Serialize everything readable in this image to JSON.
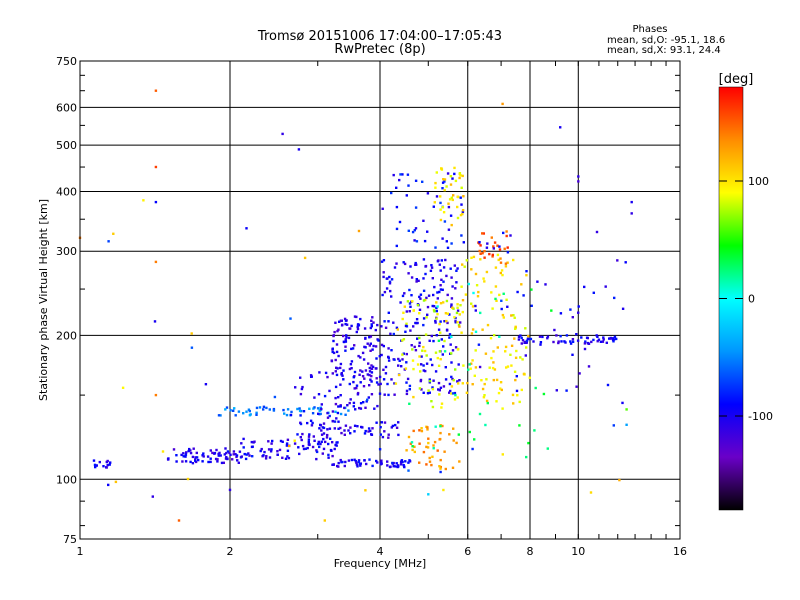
{
  "header": {
    "title_line1": "Tromsø 20151006 17:04:00–17:05:43",
    "title_line2": "RwPretec (8p)"
  },
  "phases_box": {
    "heading": "Phases",
    "line_o": "mean, sd,O: -95.1, 18.6",
    "line_x": "mean, sd,X:  93.1, 24.4"
  },
  "chart_data": {
    "type": "scatter",
    "xlabel": "Frequency [MHz]",
    "ylabel": "Stationary phase Virtual Height [km]",
    "x_scale": "log",
    "y_scale": "log",
    "xlim": [
      1,
      16
    ],
    "ylim": [
      75,
      750
    ],
    "x_ticks": [
      1,
      2,
      4,
      6,
      8,
      10,
      16
    ],
    "x_tick_labels": [
      "1",
      "2",
      "4",
      "6",
      "8",
      "10",
      "16"
    ],
    "y_ticks": [
      75,
      100,
      200,
      300,
      400,
      500,
      600,
      750
    ],
    "y_tick_labels": [
      "75",
      "100",
      "200",
      "300",
      "400",
      "500",
      "600",
      "750"
    ],
    "grid": true,
    "colorbar": {
      "label": "[deg]",
      "range": [
        -180,
        180
      ],
      "ticks": [
        100,
        0,
        -100
      ],
      "tick_labels": [
        "100",
        "0",
        "-100"
      ],
      "colors": [
        "#000000",
        "#6a00c8",
        "#0000ff",
        "#0096ff",
        "#00ffff",
        "#00ff00",
        "#ffff00",
        "#ff8c00",
        "#ff0000"
      ]
    },
    "point_clusters": [
      {
        "f": [
          1.05,
          1.15
        ],
        "h": [
          105,
          110
        ],
        "phase": -100,
        "n": 14
      },
      {
        "f": [
          1.5,
          2.1
        ],
        "h": [
          108,
          116
        ],
        "phase": -105,
        "n": 70
      },
      {
        "f": [
          2.1,
          3.3
        ],
        "h": [
          110,
          122
        ],
        "phase": -100,
        "n": 80
      },
      {
        "f": [
          3.2,
          4.6
        ],
        "h": [
          106,
          110
        ],
        "phase": -100,
        "n": 60
      },
      {
        "f": [
          1.9,
          3.6
        ],
        "h": [
          136,
          142
        ],
        "phase": -50,
        "n": 50
      },
      {
        "f": [
          3.0,
          4.4
        ],
        "h": [
          122,
          132
        ],
        "phase": -105,
        "n": 50
      },
      {
        "f": [
          3.2,
          4.0
        ],
        "h": [
          140,
          220
        ],
        "phase": -105,
        "n": 160
      },
      {
        "f": [
          2.7,
          3.3
        ],
        "h": [
          118,
          170
        ],
        "phase": -100,
        "n": 50
      },
      {
        "f": [
          4.0,
          5.8
        ],
        "h": [
          150,
          290
        ],
        "phase": -100,
        "n": 220
      },
      {
        "f": [
          4.2,
          5.9
        ],
        "h": [
          300,
          440
        ],
        "phase": -90,
        "n": 50
      },
      {
        "f": [
          5.1,
          5.9
        ],
        "h": [
          340,
          450
        ],
        "phase": 100,
        "n": 40
      },
      {
        "f": [
          4.3,
          5.8
        ],
        "h": [
          140,
          240
        ],
        "phase": 90,
        "n": 80
      },
      {
        "f": [
          4.5,
          5.8
        ],
        "h": [
          105,
          130
        ],
        "phase": 130,
        "n": 45
      },
      {
        "f": [
          5.8,
          8.0
        ],
        "h": [
          140,
          300
        ],
        "phase": 100,
        "n": 110
      },
      {
        "f": [
          6.3,
          7.3
        ],
        "h": [
          280,
          330
        ],
        "phase": 150,
        "n": 25
      },
      {
        "f": [
          7.3,
          12
        ],
        "h": [
          192,
          200
        ],
        "phase": -100,
        "n": 60
      },
      {
        "f": [
          6.0,
          12.5
        ],
        "h": [
          150,
          330
        ],
        "phase": -100,
        "n": 45
      },
      {
        "f": [
          4.5,
          9.0
        ],
        "h": [
          110,
          260
        ],
        "phase": 20,
        "n": 35
      },
      {
        "f": [
          1.0,
          14
        ],
        "h": [
          80,
          400
        ],
        "phase": -80,
        "n": 25
      },
      {
        "f": [
          1.0,
          14
        ],
        "h": [
          80,
          400
        ],
        "phase": 110,
        "n": 20
      }
    ],
    "outlier_points": [
      {
        "f": 1.42,
        "h": 650,
        "phase": 150
      },
      {
        "f": 1.42,
        "h": 450,
        "phase": 160
      },
      {
        "f": 1.42,
        "h": 285,
        "phase": 140
      },
      {
        "f": 1.42,
        "h": 380,
        "phase": -90
      },
      {
        "f": 2.55,
        "h": 528,
        "phase": -110
      },
      {
        "f": 2.75,
        "h": 490,
        "phase": -100
      },
      {
        "f": 7.05,
        "h": 610,
        "phase": 130
      },
      {
        "f": 9.2,
        "h": 545,
        "phase": -100
      },
      {
        "f": 4.05,
        "h": 368,
        "phase": -110
      },
      {
        "f": 10.0,
        "h": 430,
        "phase": -110
      },
      {
        "f": 10.0,
        "h": 420,
        "phase": -120
      },
      {
        "f": 12.8,
        "h": 380,
        "phase": -100
      },
      {
        "f": 12.8,
        "h": 360,
        "phase": -110
      },
      {
        "f": 1.0,
        "h": 320,
        "phase": 140
      },
      {
        "f": 1.42,
        "h": 150,
        "phase": 140
      },
      {
        "f": 1.4,
        "h": 92,
        "phase": -110
      },
      {
        "f": 1.58,
        "h": 82,
        "phase": 150
      },
      {
        "f": 2.0,
        "h": 95,
        "phase": -110
      },
      {
        "f": 3.1,
        "h": 82,
        "phase": 110
      },
      {
        "f": 5.0,
        "h": 93,
        "phase": -20
      },
      {
        "f": 12.5,
        "h": 130,
        "phase": -40
      },
      {
        "f": 12.5,
        "h": 140,
        "phase": 60
      }
    ]
  }
}
